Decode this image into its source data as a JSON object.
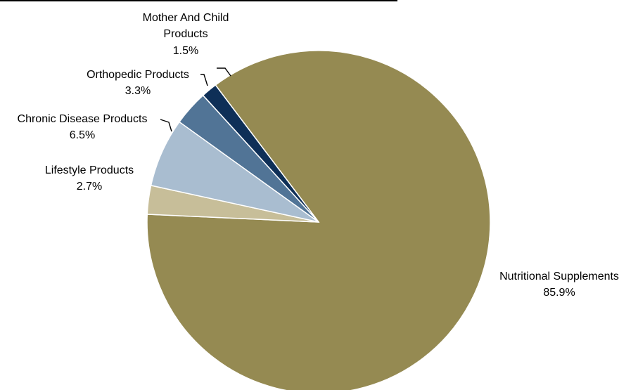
{
  "chart_data": {
    "type": "pie",
    "slices": [
      {
        "name": "Nutritional Supplements",
        "value": 85.9,
        "label": "85.9%",
        "color": "#958A52"
      },
      {
        "name": "Lifestyle Products",
        "value": 2.7,
        "label": "2.7%",
        "color": "#C7BE99"
      },
      {
        "name": "Chronic Disease Products",
        "value": 6.5,
        "label": "6.5%",
        "color": "#A9BDD0"
      },
      {
        "name": "Orthopedic Products",
        "value": 3.3,
        "label": "3.3%",
        "color": "#517496"
      },
      {
        "name": "Mother And Child Products",
        "value": 1.5,
        "label": "1.5%",
        "color": "#0E2F57"
      }
    ]
  }
}
